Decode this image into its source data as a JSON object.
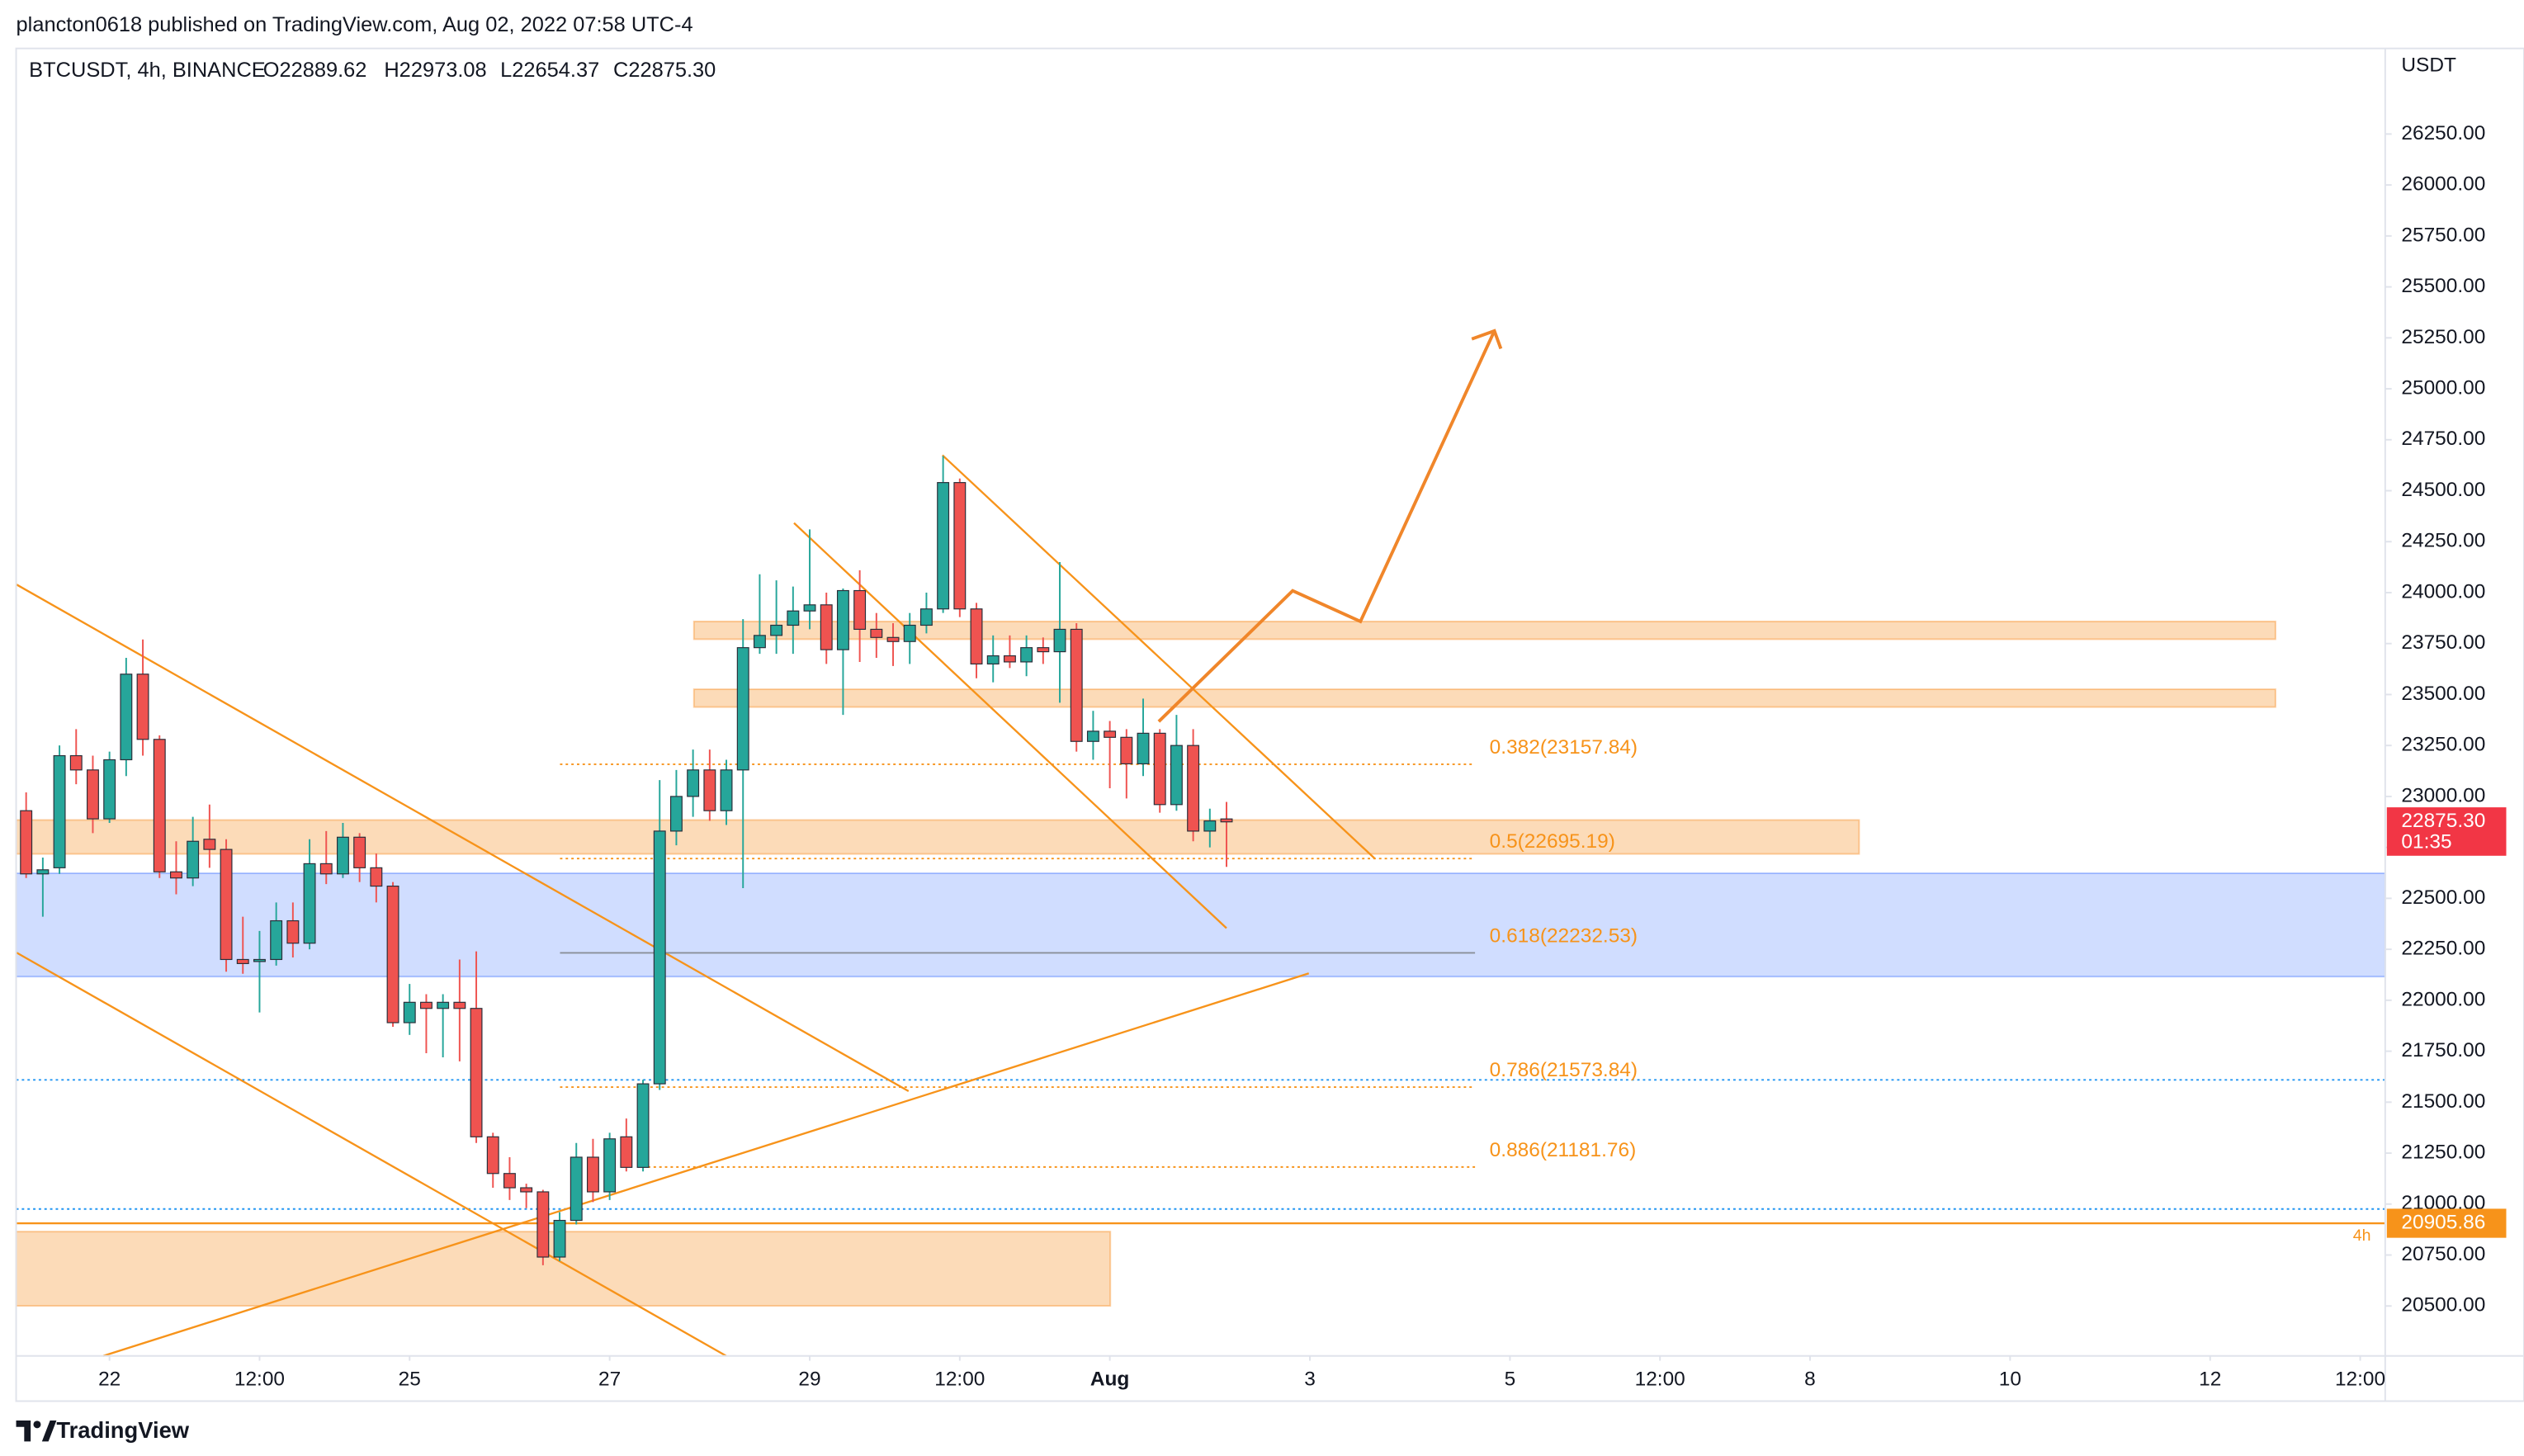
{
  "header": {
    "published": "plancton0618 published on TradingView.com, Aug 02, 2022 07:58 UTC-4",
    "legend": [
      "BTCUSDT, 4h, BINANCE",
      "O22889.62",
      "H22973.08",
      "L22654.37",
      "C22875.30"
    ],
    "footer": "TradingView"
  },
  "chart_data": {
    "type": "candlestick",
    "ylabel": "USDT",
    "x": [
      0,
      1,
      2,
      3,
      4,
      5,
      6,
      7,
      8,
      9,
      10,
      11,
      12,
      13,
      14,
      15,
      16,
      17,
      18,
      19,
      20,
      21,
      22,
      23,
      24,
      25,
      26,
      27,
      28,
      29,
      30,
      31,
      32,
      33,
      34,
      35,
      36,
      37,
      38,
      39,
      40,
      41,
      42,
      43,
      44,
      45,
      46,
      47,
      48,
      49,
      50,
      51,
      52,
      53,
      54,
      55,
      56,
      57,
      58,
      59,
      60,
      61,
      62,
      63,
      64,
      65,
      66,
      67,
      68,
      69,
      70,
      71,
      72
    ],
    "open": [
      22930,
      22620,
      22650,
      23200,
      23130,
      22890,
      23180,
      23600,
      23280,
      22630,
      22600,
      22790,
      22740,
      22200,
      22190,
      22200,
      22390,
      22280,
      22670,
      22620,
      22800,
      22650,
      22560,
      21890,
      21990,
      21960,
      21990,
      21960,
      21330,
      21150,
      21080,
      21060,
      20740,
      20920,
      21230,
      21060,
      21330,
      21180,
      21590,
      22830,
      23000,
      23130,
      22930,
      23130,
      23730,
      23790,
      23840,
      23910,
      23940,
      23720,
      24010,
      23820,
      23780,
      23760,
      23840,
      23920,
      24540,
      23920,
      23650,
      23690,
      23660,
      23730,
      23710,
      23820,
      23270,
      23320,
      23290,
      23160,
      23310,
      22960,
      23250,
      22830,
      22889.62
    ],
    "high": [
      23020,
      22700,
      23250,
      23330,
      23200,
      23220,
      23680,
      23770,
      23300,
      22780,
      22900,
      22960,
      22790,
      22410,
      22340,
      22480,
      22480,
      22790,
      22830,
      22870,
      22820,
      22720,
      22580,
      22080,
      22030,
      22030,
      22200,
      22240,
      21350,
      21230,
      21100,
      21070,
      20960,
      21300,
      21320,
      21350,
      21420,
      21610,
      23080,
      23130,
      23230,
      23230,
      23180,
      23870,
      24090,
      24060,
      24030,
      24310,
      24000,
      24020,
      24110,
      23900,
      23850,
      23900,
      24000,
      24670,
      24560,
      23950,
      23790,
      23790,
      23790,
      23780,
      24150,
      23850,
      23420,
      23370,
      23330,
      23480,
      23330,
      23400,
      23330,
      22940,
      22973.08
    ],
    "low": [
      22600,
      22410,
      22620,
      23060,
      22820,
      22870,
      23100,
      23200,
      22600,
      22520,
      22560,
      22650,
      22140,
      22130,
      21940,
      22170,
      22210,
      22250,
      22570,
      22600,
      22580,
      22480,
      21870,
      21830,
      21740,
      21720,
      21700,
      21300,
      21080,
      21020,
      20980,
      20700,
      20720,
      20900,
      21010,
      21020,
      21160,
      21160,
      21560,
      22760,
      22900,
      22880,
      22860,
      22550,
      23700,
      23700,
      23700,
      23820,
      23650,
      23400,
      23660,
      23680,
      23640,
      23650,
      23800,
      23900,
      23880,
      23580,
      23560,
      23630,
      23590,
      23650,
      23460,
      23220,
      23180,
      23040,
      22990,
      23100,
      22920,
      22930,
      22780,
      22750,
      22654.37
    ],
    "close": [
      22620,
      22640,
      23200,
      23130,
      22890,
      23180,
      23600,
      23280,
      22630,
      22600,
      22780,
      22740,
      22200,
      22180,
      22200,
      22390,
      22280,
      22670,
      22620,
      22800,
      22650,
      22560,
      21890,
      21990,
      21960,
      21990,
      21960,
      21330,
      21150,
      21080,
      21060,
      20740,
      20920,
      21230,
      21060,
      21320,
      21180,
      21590,
      22830,
      23000,
      23130,
      22930,
      23130,
      23730,
      23790,
      23840,
      23910,
      23940,
      23720,
      24010,
      23820,
      23780,
      23760,
      23840,
      23920,
      24540,
      23920,
      23650,
      23690,
      23660,
      23730,
      23710,
      23820,
      23270,
      23320,
      23290,
      23160,
      23310,
      22960,
      23250,
      22830,
      22880,
      22875.3
    ],
    "up_color": "#26a69a",
    "down_color": "#ef5350",
    "border_color": "#2a2e39",
    "xlim": [
      -0.6,
      141.5
    ],
    "xticks": [
      {
        "value": 5,
        "label": "22"
      },
      {
        "value": 14,
        "label": "12:00"
      },
      {
        "value": 23,
        "label": "25"
      },
      {
        "value": 35,
        "label": "27"
      },
      {
        "value": 47,
        "label": "29"
      },
      {
        "value": 56,
        "label": "12:00"
      },
      {
        "value": 65,
        "label": "Aug"
      },
      {
        "value": 77,
        "label": "3"
      },
      {
        "value": 89,
        "label": "5"
      },
      {
        "value": 98,
        "label": "12:00"
      },
      {
        "value": 107,
        "label": "8"
      },
      {
        "value": 119,
        "label": "10"
      },
      {
        "value": 131,
        "label": "12"
      },
      {
        "value": 140,
        "label": "12:00"
      }
    ],
    "ylim": [
      20255,
      26670
    ],
    "yticks": [
      {
        "value": 20500,
        "label": "20500.00"
      },
      {
        "value": 20750,
        "label": "20750.00"
      },
      {
        "value": 21000,
        "label": "21000.00"
      },
      {
        "value": 21250,
        "label": "21250.00"
      },
      {
        "value": 21500,
        "label": "21500.00"
      },
      {
        "value": 21750,
        "label": "21750.00"
      },
      {
        "value": 22000,
        "label": "22000.00"
      },
      {
        "value": 22250,
        "label": "22250.00"
      },
      {
        "value": 22500,
        "label": "22500.00"
      },
      {
        "value": 22750,
        "label": "22750.00"
      },
      {
        "value": 23000,
        "label": "23000.00"
      },
      {
        "value": 23250,
        "label": "23250.00"
      },
      {
        "value": 23500,
        "label": "23500.00"
      },
      {
        "value": 23750,
        "label": "23750.00"
      },
      {
        "value": 24000,
        "label": "24000.00"
      },
      {
        "value": 24250,
        "label": "24250.00"
      },
      {
        "value": 24500,
        "label": "24500.00"
      },
      {
        "value": 24750,
        "label": "24750.00"
      },
      {
        "value": 25000,
        "label": "25000.00"
      },
      {
        "value": 25250,
        "label": "25250.00"
      },
      {
        "value": 25500,
        "label": "25500.00"
      },
      {
        "value": 25750,
        "label": "25750.00"
      },
      {
        "value": 26000,
        "label": "26000.00"
      },
      {
        "value": 26250,
        "label": "26250.00"
      }
    ],
    "grid": false,
    "fib_levels": [
      {
        "value": 23157.84,
        "label": "0.382(23157.84)"
      },
      {
        "value": 22695.19,
        "label": "0.5(22695.19)"
      },
      {
        "value": 22232.53,
        "label": "0.618(22232.53)"
      },
      {
        "value": 21573.84,
        "label": "0.786(21573.84)"
      },
      {
        "value": 21181.76,
        "label": "0.886(21181.76)"
      }
    ],
    "fib_color": "#f7931a",
    "price_line": {
      "value": 20905.86,
      "label": "20905.86",
      "color": "#f7931a",
      "interval": "4h"
    },
    "last_price": {
      "value": 22875.3,
      "label": "22875.30",
      "countdown": "01:35",
      "color": "#f23645"
    }
  }
}
